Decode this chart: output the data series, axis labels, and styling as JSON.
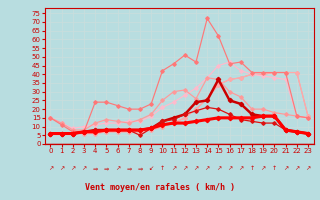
{
  "background_color": "#b8dde0",
  "grid_color": "#aacccc",
  "xlabel": "Vent moyen/en rafales ( km/h )",
  "x_ticks": [
    0,
    1,
    2,
    3,
    4,
    5,
    6,
    7,
    8,
    9,
    10,
    11,
    12,
    13,
    14,
    15,
    16,
    17,
    18,
    19,
    20,
    21,
    22,
    23
  ],
  "ylim": [
    0,
    78
  ],
  "y_ticks": [
    0,
    5,
    10,
    15,
    20,
    25,
    30,
    35,
    40,
    45,
    50,
    55,
    60,
    65,
    70,
    75
  ],
  "series": [
    {
      "color": "#ff9999",
      "linewidth": 0.8,
      "markersize": 1.8,
      "y": [
        6,
        6,
        6,
        6,
        6,
        7,
        7,
        7,
        7,
        8,
        10,
        12,
        15,
        20,
        26,
        34,
        37,
        38,
        40,
        40,
        41,
        41,
        41,
        16
      ]
    },
    {
      "color": "#ffaaaa",
      "linewidth": 0.8,
      "markersize": 1.8,
      "y": [
        6,
        6,
        6,
        6,
        6,
        7,
        7,
        7,
        7,
        8,
        10,
        12,
        15,
        20,
        26,
        34,
        37,
        38,
        40,
        40,
        41,
        41,
        41,
        16
      ]
    },
    {
      "color": "#ffbbcc",
      "linewidth": 0.9,
      "markersize": 1.8,
      "y": [
        15,
        12,
        9,
        10,
        11,
        12,
        12,
        13,
        13,
        16,
        21,
        24,
        28,
        32,
        38,
        45,
        47,
        42,
        40,
        39,
        38,
        37,
        16,
        15
      ]
    },
    {
      "color": "#ff9999",
      "linewidth": 0.85,
      "markersize": 1.8,
      "y": [
        15,
        12,
        8,
        8,
        12,
        14,
        13,
        12,
        14,
        17,
        25,
        30,
        31,
        26,
        38,
        37,
        30,
        27,
        20,
        20,
        18,
        17,
        16,
        15
      ]
    },
    {
      "color": "#ff7777",
      "linewidth": 0.85,
      "markersize": 1.8,
      "y": [
        15,
        11,
        7,
        7,
        24,
        24,
        22,
        20,
        20,
        23,
        42,
        46,
        51,
        47,
        72,
        62,
        46,
        47,
        41,
        41,
        41,
        41,
        16,
        15
      ]
    },
    {
      "color": "#cc0000",
      "linewidth": 1.8,
      "markersize": 2.2,
      "y": [
        6,
        6,
        6,
        7,
        8,
        8,
        8,
        8,
        8,
        9,
        13,
        15,
        17,
        24,
        25,
        37,
        25,
        23,
        17,
        16,
        16,
        8,
        7,
        6
      ]
    },
    {
      "color": "#dd1111",
      "linewidth": 0.9,
      "markersize": 1.8,
      "y": [
        6,
        6,
        6,
        7,
        8,
        8,
        8,
        8,
        5,
        9,
        13,
        14,
        17,
        19,
        21,
        20,
        17,
        14,
        13,
        12,
        12,
        8,
        7,
        6
      ]
    },
    {
      "color": "#ff0000",
      "linewidth": 2.2,
      "markersize": 2.2,
      "y": [
        6,
        6,
        6,
        7,
        7,
        8,
        8,
        8,
        8,
        9,
        11,
        12,
        12,
        13,
        14,
        15,
        15,
        15,
        15,
        16,
        16,
        8,
        7,
        6
      ]
    }
  ],
  "arrows": [
    "↗",
    "↗",
    "↗",
    "↗",
    "⇒",
    "⇒",
    "↗",
    "⇒",
    "⇒",
    "↙",
    "↑",
    "↗",
    "↗",
    "↗",
    "↗",
    "↗",
    "↗",
    "↗",
    "↑",
    "↗",
    "↑",
    "↗",
    "↗",
    "↗"
  ]
}
